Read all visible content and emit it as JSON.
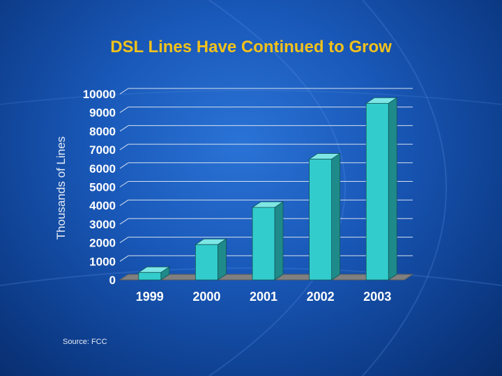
{
  "title": "DSL Lines Have Continued to Grow",
  "source": "Source: FCC",
  "colors": {
    "title": "#f2c21b",
    "bar_front": "#33cccc",
    "bar_side": "#1f8a8a",
    "bar_top": "#7fe6e6",
    "floor": "#808080",
    "text": "#ffffff"
  },
  "chart_data": {
    "type": "bar",
    "title": "DSL Lines Have Continued to Grow",
    "xlabel": "",
    "ylabel": "Thousands of Lines",
    "categories": [
      "1999",
      "2000",
      "2001",
      "2002",
      "2003"
    ],
    "values": [
      400,
      1900,
      3900,
      6500,
      9500
    ],
    "ylim": [
      0,
      10000
    ],
    "yticks": [
      "0",
      "1000",
      "2000",
      "3000",
      "4000",
      "5000",
      "6000",
      "7000",
      "8000",
      "9000",
      "10000"
    ],
    "grid": true,
    "legend": "none"
  }
}
